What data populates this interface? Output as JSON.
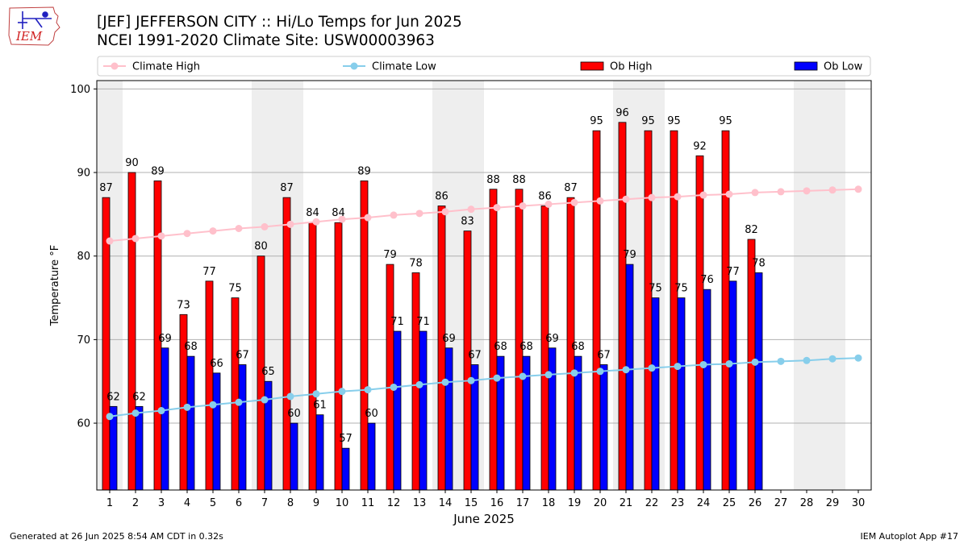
{
  "header": {
    "logo_text": "IEM",
    "title_line1": "[JEF] JEFFERSON CITY :: Hi/Lo Temps for Jun 2025",
    "title_line2": "NCEI 1991-2020 Climate Site: USW00003963"
  },
  "footer": {
    "generated": "Generated at 26 Jun 2025 8:54 AM CDT in 0.32s",
    "app": "IEM Autoplot App #17"
  },
  "colors": {
    "climate_high": "#ffc0cb",
    "climate_low": "#87ceeb",
    "ob_high": "#ff0000",
    "ob_low": "#0000ff",
    "weekend_shade": "#eeeeee",
    "grid": "#b0b0b0"
  },
  "chart_data": {
    "type": "bar",
    "xlabel": "June 2025",
    "ylabel": "Temperature °F",
    "ylim": [
      52,
      101
    ],
    "yticks": [
      60,
      70,
      80,
      90,
      100
    ],
    "grid": "horizontal",
    "legend_position": "top",
    "categories": [
      "1",
      "2",
      "3",
      "4",
      "5",
      "6",
      "7",
      "8",
      "9",
      "10",
      "11",
      "12",
      "13",
      "14",
      "15",
      "16",
      "17",
      "18",
      "19",
      "20",
      "21",
      "22",
      "23",
      "24",
      "25",
      "26",
      "27",
      "28",
      "29",
      "30"
    ],
    "shaded_weekends": [
      [
        1,
        1
      ],
      [
        7,
        8
      ],
      [
        14,
        15
      ],
      [
        21,
        22
      ],
      [
        28,
        29
      ]
    ],
    "series": [
      {
        "name": "Climate High",
        "kind": "line",
        "values": [
          81.8,
          82.1,
          82.4,
          82.7,
          83.0,
          83.3,
          83.5,
          83.8,
          84.1,
          84.4,
          84.6,
          84.9,
          85.1,
          85.3,
          85.6,
          85.8,
          86.0,
          86.2,
          86.4,
          86.6,
          86.8,
          87.0,
          87.1,
          87.3,
          87.4,
          87.6,
          87.7,
          87.8,
          87.9,
          88.0
        ]
      },
      {
        "name": "Climate Low",
        "kind": "line",
        "values": [
          60.8,
          61.2,
          61.5,
          61.9,
          62.2,
          62.5,
          62.8,
          63.2,
          63.5,
          63.8,
          64.0,
          64.3,
          64.6,
          64.9,
          65.1,
          65.4,
          65.6,
          65.8,
          66.0,
          66.2,
          66.4,
          66.6,
          66.8,
          67.0,
          67.1,
          67.3,
          67.4,
          67.5,
          67.7,
          67.8
        ]
      },
      {
        "name": "Ob High",
        "kind": "bar",
        "values": [
          87,
          90,
          89,
          73,
          77,
          75,
          80,
          87,
          84,
          84,
          89,
          79,
          78,
          86,
          83,
          88,
          88,
          86,
          87,
          95,
          96,
          95,
          95,
          92,
          95,
          82,
          null,
          null,
          null,
          null
        ]
      },
      {
        "name": "Ob Low",
        "kind": "bar",
        "values": [
          62,
          62,
          69,
          68,
          66,
          67,
          65,
          60,
          61,
          57,
          60,
          71,
          71,
          69,
          67,
          68,
          68,
          69,
          68,
          67,
          79,
          75,
          75,
          76,
          77,
          78,
          null,
          null,
          null,
          null
        ]
      }
    ]
  }
}
